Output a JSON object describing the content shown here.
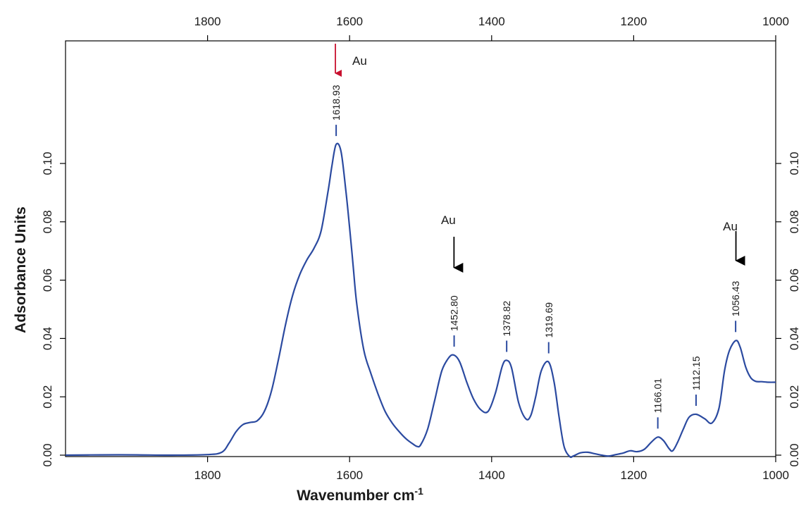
{
  "chart_data": {
    "type": "line",
    "xlabel": "Wavenumber cm",
    "xlabel_superscript": "-1",
    "ylabel": "Adsorbance Units",
    "xlim": [
      2000,
      1000
    ],
    "ylim": [
      0,
      0.12
    ],
    "x_reversed": true,
    "x_ticks": [
      1800,
      1600,
      1400,
      1200,
      1000
    ],
    "x_tick_labels": [
      "1800",
      "1600",
      "1400",
      "1200",
      "1000"
    ],
    "y_ticks": [
      0,
      0.02,
      0.04,
      0.06,
      0.08,
      0.1
    ],
    "y_tick_labels": [
      "0.00",
      "0.02",
      "0.04",
      "0.06",
      "0.08",
      "0.10"
    ],
    "grid": false,
    "series": [
      {
        "color": "#2b4aa0",
        "x": [
          2000,
          1950,
          1900,
          1850,
          1800,
          1780,
          1770,
          1760,
          1750,
          1740,
          1730,
          1720,
          1710,
          1700,
          1690,
          1680,
          1670,
          1660,
          1650,
          1640,
          1630,
          1625,
          1619,
          1612,
          1605,
          1600,
          1595,
          1590,
          1580,
          1570,
          1560,
          1550,
          1540,
          1530,
          1520,
          1510,
          1505,
          1500,
          1490,
          1480,
          1470,
          1460,
          1453,
          1445,
          1435,
          1425,
          1415,
          1405,
          1395,
          1385,
          1379,
          1372,
          1362,
          1352,
          1345,
          1338,
          1330,
          1320,
          1312,
          1305,
          1298,
          1290,
          1285,
          1275,
          1265,
          1255,
          1245,
          1235,
          1225,
          1215,
          1205,
          1195,
          1185,
          1175,
          1166,
          1158,
          1150,
          1145,
          1138,
          1130,
          1122,
          1112,
          1100,
          1090,
          1080,
          1072,
          1065,
          1056,
          1050,
          1042,
          1035,
          1028,
          1020,
          1010,
          1000
        ],
        "y": [
          0,
          0.0001,
          0.0001,
          0,
          0.0002,
          0.001,
          0.004,
          0.008,
          0.0105,
          0.0112,
          0.0118,
          0.015,
          0.022,
          0.033,
          0.045,
          0.055,
          0.062,
          0.067,
          0.071,
          0.077,
          0.091,
          0.099,
          0.1065,
          0.104,
          0.09,
          0.078,
          0.065,
          0.052,
          0.036,
          0.028,
          0.021,
          0.015,
          0.011,
          0.008,
          0.0055,
          0.0037,
          0.003,
          0.0035,
          0.009,
          0.019,
          0.029,
          0.0335,
          0.0343,
          0.032,
          0.025,
          0.019,
          0.0155,
          0.015,
          0.021,
          0.0305,
          0.0325,
          0.03,
          0.018,
          0.0125,
          0.0135,
          0.02,
          0.029,
          0.032,
          0.025,
          0.013,
          0.003,
          -0.0005,
          -0.0003,
          0.0008,
          0.001,
          0.0005,
          0,
          -0.0003,
          0.0002,
          0.0007,
          0.0015,
          0.0012,
          0.002,
          0.0045,
          0.0062,
          0.005,
          0.0022,
          0.0015,
          0.0045,
          0.009,
          0.013,
          0.014,
          0.0125,
          0.011,
          0.016,
          0.029,
          0.036,
          0.0393,
          0.037,
          0.03,
          0.0265,
          0.0253,
          0.0252,
          0.025,
          0.025
        ]
      }
    ],
    "peak_labels": [
      {
        "x": 1618.93,
        "y": 0.1065,
        "text": "1618.93"
      },
      {
        "x": 1452.8,
        "y": 0.0343,
        "text": "1452.80"
      },
      {
        "x": 1378.82,
        "y": 0.0325,
        "text": "1378.82"
      },
      {
        "x": 1319.69,
        "y": 0.032,
        "text": "1319.69"
      },
      {
        "x": 1166.01,
        "y": 0.0062,
        "text": "1166.01"
      },
      {
        "x": 1112.15,
        "y": 0.014,
        "text": "1112.15"
      },
      {
        "x": 1056.43,
        "y": 0.0393,
        "text": "1056.43"
      }
    ],
    "annotations": [
      {
        "text": "Au",
        "x": 1620,
        "arrow_color": "#c8102e",
        "label_side": "right"
      },
      {
        "text": "Au",
        "x": 1453,
        "arrow_color": "#000000",
        "label_side": "above"
      },
      {
        "text": "Au",
        "x": 1056,
        "arrow_color": "#000000",
        "label_side": "above"
      }
    ]
  }
}
